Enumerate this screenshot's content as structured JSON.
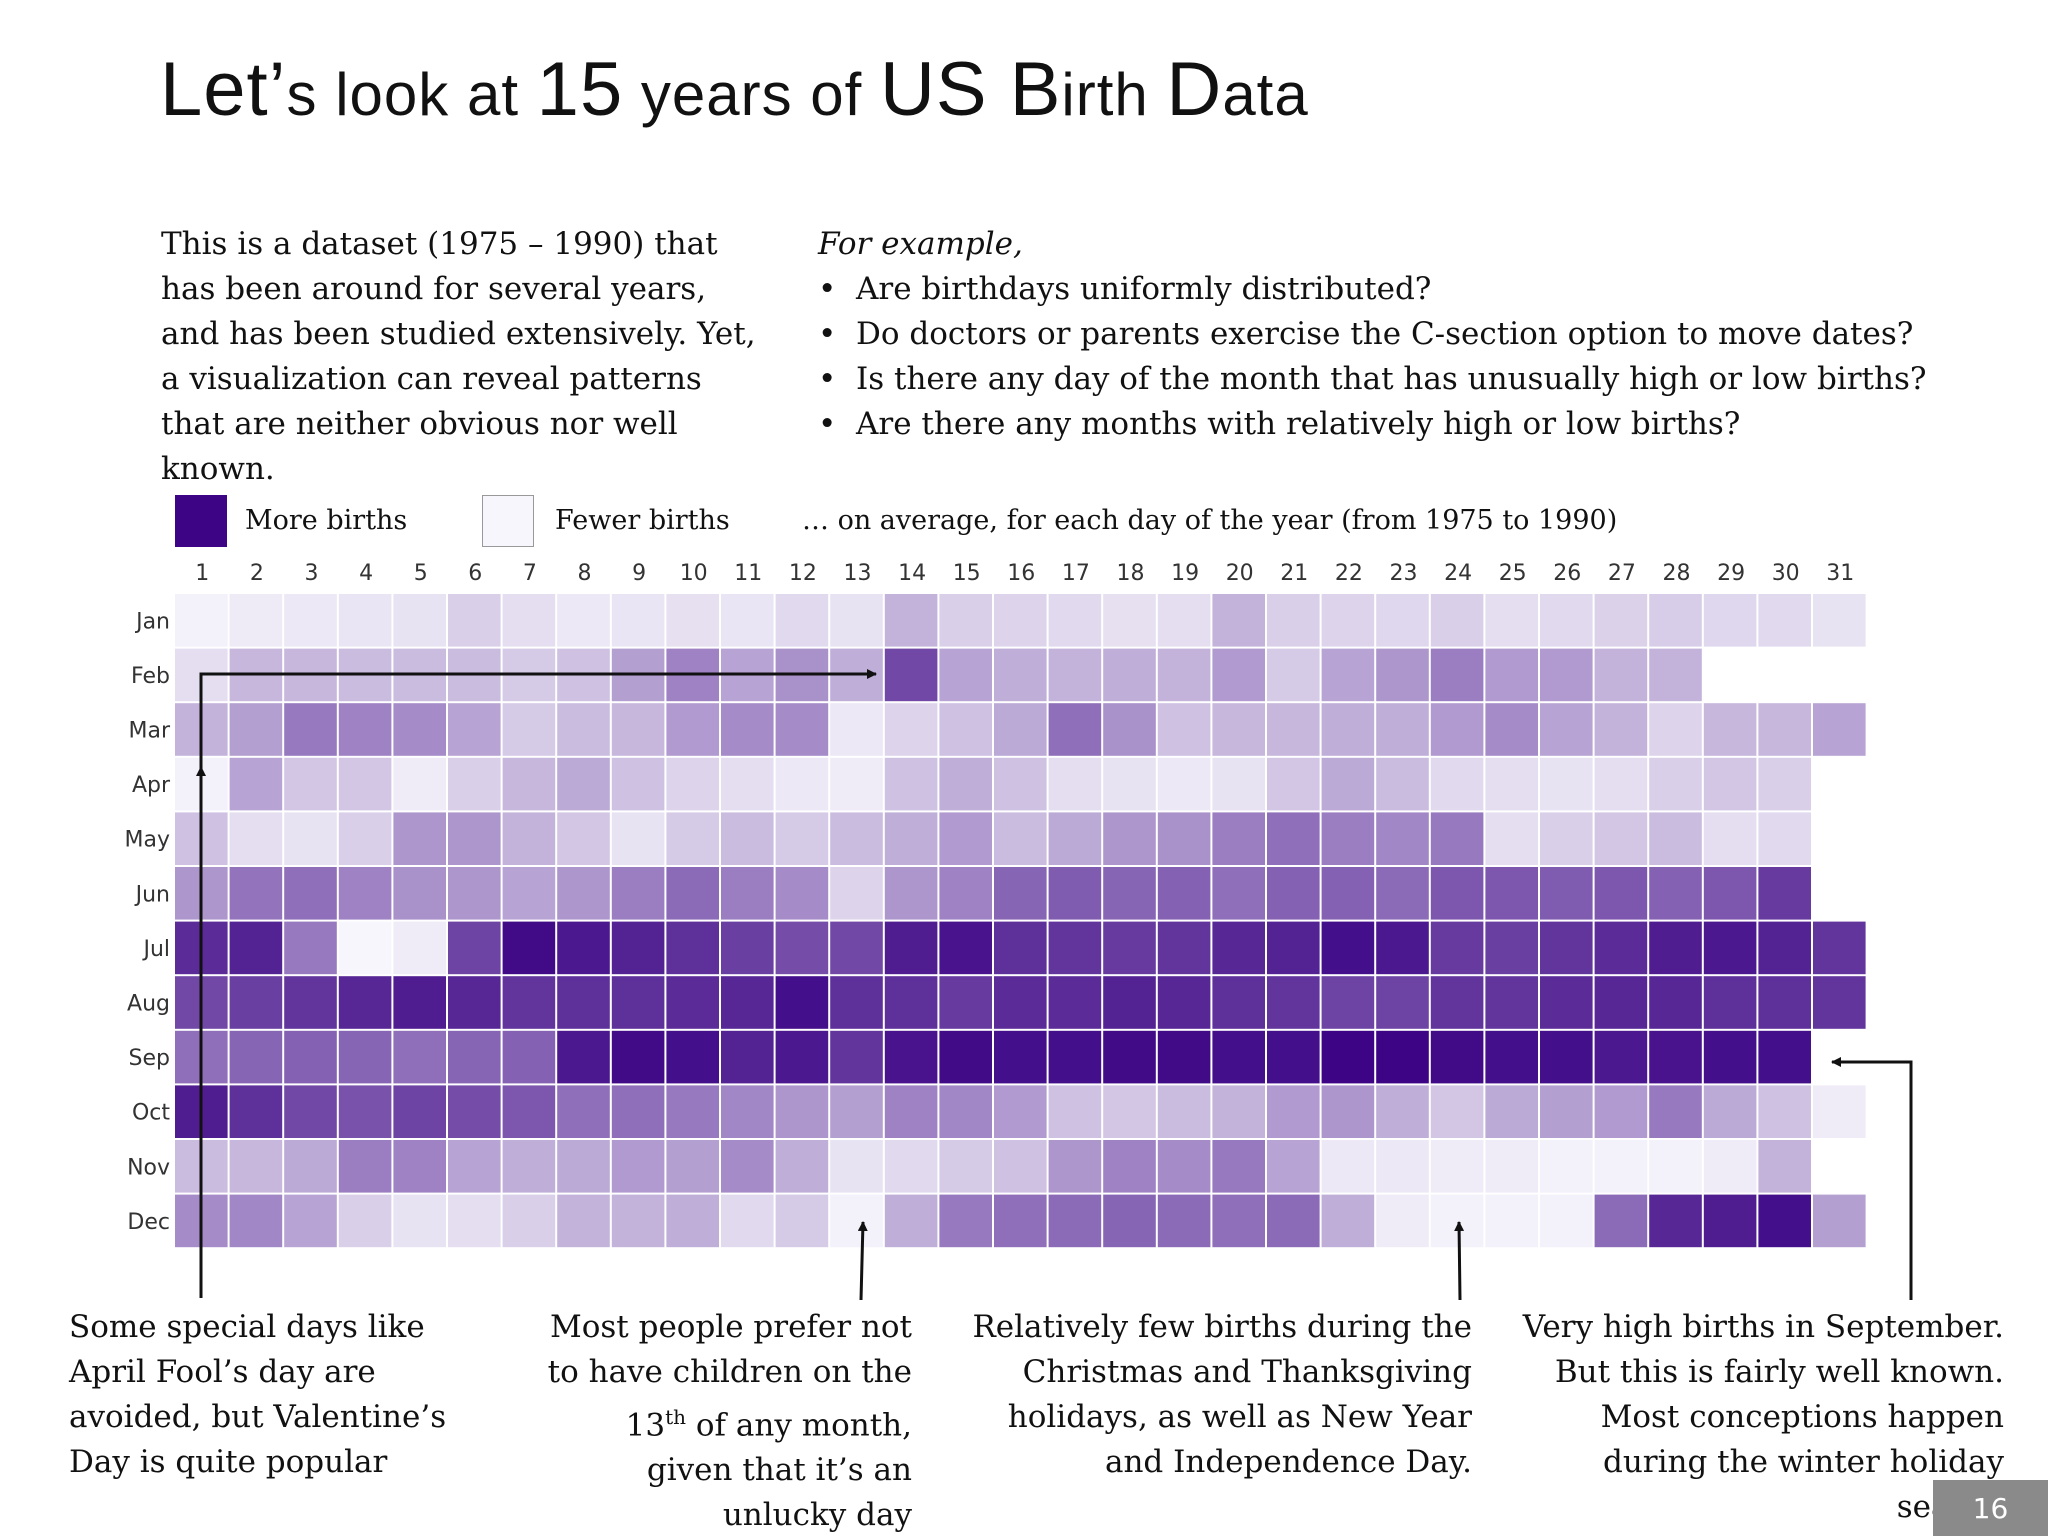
{
  "slide": {
    "title_parts": [
      "Let",
      "’",
      "s look at ",
      "15",
      " years of ",
      "US B",
      "irth ",
      "D",
      "ata"
    ],
    "title_text": "LET’S LOOK AT 15 YEARS OF US BIRTH DATA",
    "intro": "This is a dataset (1975 – 1990) that has been around for several years, and has been studied extensively. Yet, a visualization can reveal patterns that are neither obvious nor well known.",
    "examples_lead": "For example,",
    "examples": [
      "Are birthdays uniformly distributed?",
      "Do doctors or parents exercise the C-section option to move dates?",
      "Is there any day of the month that has unusually high or low births?",
      "Are there any months with relatively high or low births?"
    ],
    "page_number": "16"
  },
  "legend": {
    "more_label": "More births",
    "fewer_label": "Fewer births",
    "caption": "… on average, for each day of the year (from 1975 to 1990)"
  },
  "annotations": {
    "special_days": "Some special days like April Fool’s day are avoided, but Valentine’s Day is quite popular",
    "thirteenth_pre": "Most people prefer not to have children on the 13",
    "thirteenth_sup": "th",
    "thirteenth_post": " of any month, given that it’s an unlucky day",
    "holidays": "Relatively few births during the Christmas and Thanksgiving holidays, as well as New Year and Independence Day.",
    "september": "Very high births in September. But this is fairly well known. Most conceptions happen during the winter holiday season"
  },
  "colors": {
    "high": "#3d0585",
    "low": "#f7f6fc",
    "arrow": "#111111",
    "page_badge": "#8a8a8a"
  },
  "chart_data": {
    "type": "heatmap",
    "title": "",
    "xlabel": "",
    "ylabel": "",
    "x": [
      "1",
      "2",
      "3",
      "4",
      "5",
      "6",
      "7",
      "8",
      "9",
      "10",
      "11",
      "12",
      "13",
      "14",
      "15",
      "16",
      "17",
      "18",
      "19",
      "20",
      "21",
      "22",
      "23",
      "24",
      "25",
      "26",
      "27",
      "28",
      "29",
      "30",
      "31"
    ],
    "y": [
      "Jan",
      "Feb",
      "Mar",
      "Apr",
      "May",
      "Jun",
      "Jul",
      "Aug",
      "Sep",
      "Oct",
      "Nov",
      "Dec"
    ],
    "value_scale": "relative birth intensity, 0 = fewest births, 1 = most births",
    "legend": [
      "More births",
      "Fewer births"
    ],
    "values": [
      [
        0.02,
        0.05,
        0.06,
        0.07,
        0.08,
        0.16,
        0.1,
        0.06,
        0.07,
        0.09,
        0.07,
        0.12,
        0.08,
        0.28,
        0.16,
        0.14,
        0.12,
        0.09,
        0.1,
        0.28,
        0.16,
        0.14,
        0.13,
        0.16,
        0.1,
        0.12,
        0.15,
        0.17,
        0.13,
        0.12,
        0.08
      ],
      [
        0.1,
        0.26,
        0.26,
        0.24,
        0.24,
        0.24,
        0.18,
        0.22,
        0.36,
        0.48,
        0.34,
        0.42,
        0.3,
        0.72,
        0.34,
        0.3,
        0.28,
        0.3,
        0.28,
        0.38,
        0.18,
        0.34,
        0.4,
        0.5,
        0.38,
        0.38,
        0.28,
        0.28,
        null,
        null,
        null
      ],
      [
        0.28,
        0.36,
        0.52,
        0.48,
        0.44,
        0.34,
        0.18,
        0.24,
        0.26,
        0.38,
        0.44,
        0.44,
        0.06,
        0.14,
        0.22,
        0.32,
        0.56,
        0.42,
        0.22,
        0.26,
        0.26,
        0.3,
        0.3,
        0.38,
        0.44,
        0.34,
        0.28,
        0.14,
        0.26,
        0.26,
        0.34
      ],
      [
        0.02,
        0.34,
        0.2,
        0.2,
        0.04,
        0.16,
        0.26,
        0.32,
        0.22,
        0.14,
        0.1,
        0.06,
        0.04,
        0.22,
        0.3,
        0.22,
        0.1,
        0.08,
        0.06,
        0.08,
        0.2,
        0.32,
        0.24,
        0.12,
        0.1,
        0.08,
        0.1,
        0.16,
        0.2,
        0.16,
        null
      ],
      [
        0.22,
        0.1,
        0.08,
        0.16,
        0.4,
        0.4,
        0.28,
        0.2,
        0.08,
        0.18,
        0.24,
        0.18,
        0.24,
        0.3,
        0.38,
        0.24,
        0.32,
        0.4,
        0.42,
        0.5,
        0.56,
        0.5,
        0.46,
        0.52,
        0.1,
        0.16,
        0.2,
        0.24,
        0.1,
        0.12,
        null
      ],
      [
        0.4,
        0.54,
        0.56,
        0.48,
        0.42,
        0.4,
        0.34,
        0.4,
        0.5,
        0.58,
        0.5,
        0.44,
        0.14,
        0.4,
        0.48,
        0.6,
        0.64,
        0.6,
        0.62,
        0.56,
        0.62,
        0.62,
        0.58,
        0.66,
        0.66,
        0.64,
        0.66,
        0.62,
        0.66,
        0.78,
        null
      ],
      [
        0.84,
        0.88,
        0.52,
        0.0,
        0.04,
        0.74,
        0.98,
        0.92,
        0.88,
        0.82,
        0.76,
        0.7,
        0.72,
        0.9,
        0.94,
        0.82,
        0.8,
        0.78,
        0.8,
        0.86,
        0.88,
        0.96,
        0.92,
        0.78,
        0.76,
        0.8,
        0.84,
        0.9,
        0.92,
        0.88,
        0.8
      ],
      [
        0.72,
        0.76,
        0.8,
        0.86,
        0.9,
        0.86,
        0.8,
        0.82,
        0.82,
        0.84,
        0.86,
        0.96,
        0.82,
        0.82,
        0.78,
        0.84,
        0.84,
        0.88,
        0.86,
        0.82,
        0.8,
        0.74,
        0.74,
        0.8,
        0.8,
        0.84,
        0.86,
        0.86,
        0.82,
        0.82,
        0.8
      ],
      [
        0.56,
        0.6,
        0.62,
        0.6,
        0.56,
        0.6,
        0.62,
        0.92,
        0.98,
        0.96,
        0.88,
        0.92,
        0.8,
        0.94,
        0.98,
        0.96,
        0.96,
        0.98,
        0.98,
        0.96,
        0.96,
        1.0,
        1.0,
        0.98,
        0.96,
        0.96,
        0.92,
        0.94,
        0.96,
        0.96,
        null
      ],
      [
        0.9,
        0.82,
        0.72,
        0.68,
        0.74,
        0.7,
        0.66,
        0.56,
        0.56,
        0.52,
        0.46,
        0.4,
        0.36,
        0.48,
        0.46,
        0.38,
        0.22,
        0.2,
        0.24,
        0.28,
        0.38,
        0.4,
        0.3,
        0.2,
        0.32,
        0.36,
        0.38,
        0.52,
        0.32,
        0.22,
        0.04
      ],
      [
        0.24,
        0.26,
        0.32,
        0.5,
        0.48,
        0.34,
        0.3,
        0.32,
        0.38,
        0.36,
        0.44,
        0.3,
        0.08,
        0.12,
        0.18,
        0.22,
        0.4,
        0.48,
        0.44,
        0.52,
        0.34,
        0.06,
        0.06,
        0.04,
        0.04,
        0.02,
        0.02,
        0.02,
        0.04,
        0.28,
        null
      ],
      [
        0.44,
        0.46,
        0.34,
        0.16,
        0.08,
        0.1,
        0.16,
        0.28,
        0.28,
        0.3,
        0.12,
        0.18,
        0.02,
        0.3,
        0.52,
        0.56,
        0.58,
        0.6,
        0.58,
        0.56,
        0.58,
        0.3,
        0.04,
        0.02,
        0.02,
        0.02,
        0.58,
        0.86,
        0.9,
        0.96,
        0.36
      ]
    ]
  }
}
